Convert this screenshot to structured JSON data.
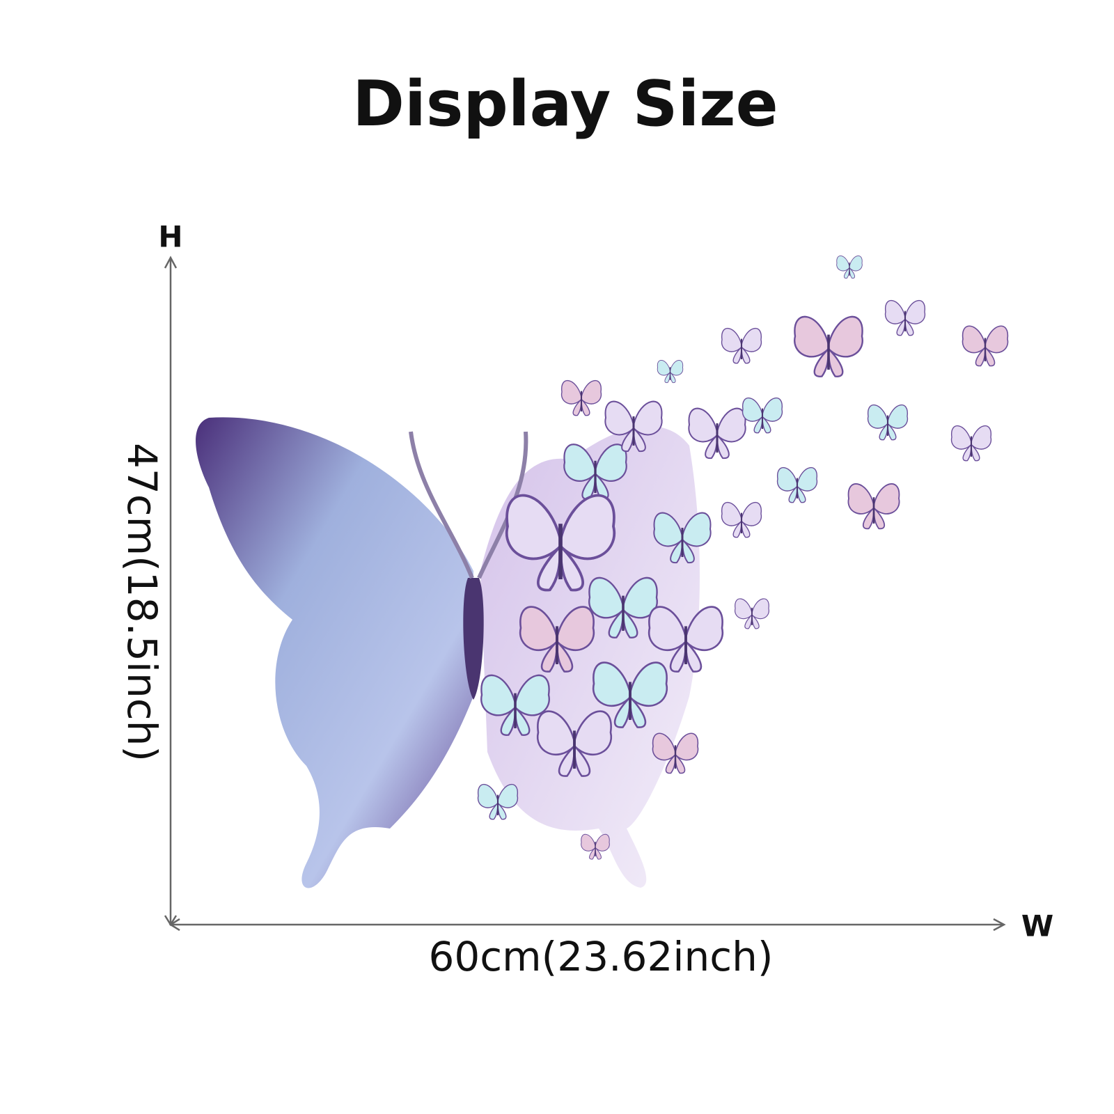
{
  "header": {
    "title": "Display Size"
  },
  "dimensions": {
    "height_axis": "H",
    "width_axis": "W",
    "height": "47cm(18.5inch)",
    "width": "60cm(23.62inch)"
  }
}
